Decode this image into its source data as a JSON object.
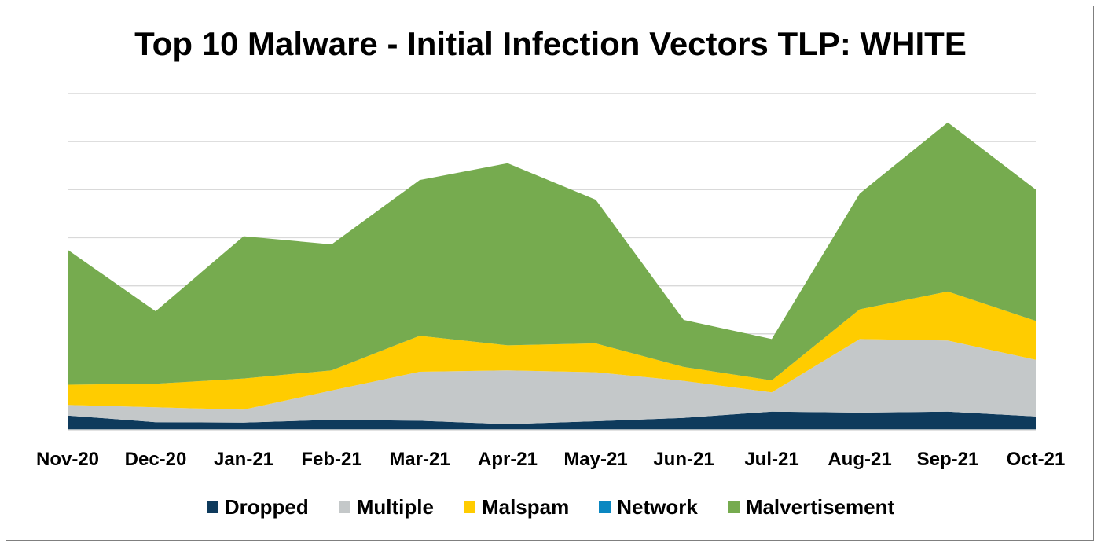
{
  "chart_data": {
    "type": "area",
    "stacked": true,
    "title": "Top 10 Malware - Initial Infection Vectors TLP: WHITE",
    "categories": [
      "Nov-20",
      "Dec-20",
      "Jan-21",
      "Feb-21",
      "Mar-21",
      "Apr-21",
      "May-21",
      "Jun-21",
      "Jul-21",
      "Aug-21",
      "Sep-21",
      "Oct-21"
    ],
    "ylim": [
      0,
      7
    ],
    "grid": true,
    "legend_position": "bottom",
    "series": [
      {
        "name": "Dropped",
        "color": "#0e3a5c",
        "values": [
          0.3,
          0.16,
          0.15,
          0.21,
          0.19,
          0.12,
          0.18,
          0.25,
          0.38,
          0.36,
          0.38,
          0.28
        ]
      },
      {
        "name": "Multiple",
        "color": "#c4c8c9",
        "values": [
          0.22,
          0.31,
          0.27,
          0.61,
          1.02,
          1.12,
          1.02,
          0.77,
          0.4,
          1.53,
          1.48,
          1.18
        ]
      },
      {
        "name": "Malspam",
        "color": "#ffcc00",
        "values": [
          0.42,
          0.49,
          0.65,
          0.42,
          0.75,
          0.52,
          0.6,
          0.29,
          0.25,
          0.62,
          1.02,
          0.81
        ]
      },
      {
        "name": "Network",
        "color": "#0a87c1",
        "values": [
          0,
          0,
          0,
          0,
          0,
          0,
          0,
          0,
          0,
          0,
          0,
          0
        ]
      },
      {
        "name": "Malvertisement",
        "color": "#76ab4f",
        "values": [
          2.81,
          1.51,
          2.96,
          2.62,
          3.24,
          3.79,
          2.99,
          0.98,
          0.86,
          2.41,
          3.52,
          2.73
        ]
      }
    ]
  }
}
